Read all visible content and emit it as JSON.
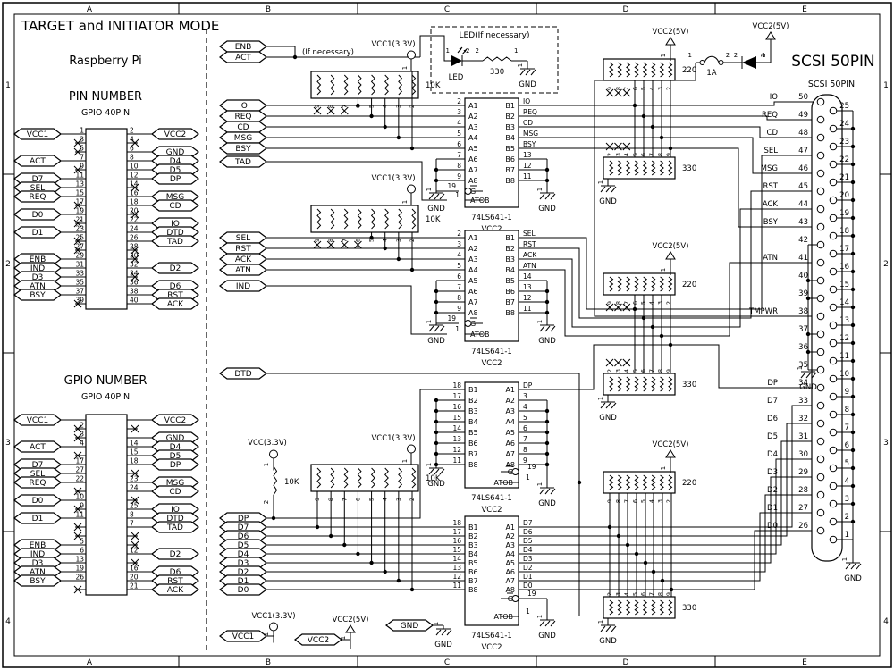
{
  "sheet": {
    "title": "TARGET and INITIATOR MODE",
    "cols": [
      "A",
      "B",
      "C",
      "D",
      "E"
    ],
    "rows": [
      "1",
      "2",
      "3",
      "4"
    ]
  },
  "left_panel": {
    "heading": "Raspberry Pi",
    "pin_table": {
      "title": "PIN NUMBER",
      "subtitle": "GPIO 40PIN",
      "left": [
        {
          "n": "1",
          "s": "VCC1"
        },
        {
          "n": "3",
          "x": 1
        },
        {
          "n": "5",
          "x": 1
        },
        {
          "n": "7",
          "s": "ACT"
        },
        {
          "n": "9",
          "x": 1
        },
        {
          "n": "11",
          "s": "D7"
        },
        {
          "n": "13",
          "s": "SEL"
        },
        {
          "n": "15",
          "s": "REQ"
        },
        {
          "n": "17",
          "x": 1
        },
        {
          "n": "19",
          "s": "D0"
        },
        {
          "n": "21",
          "x": 1
        },
        {
          "n": "23",
          "s": "D1"
        },
        {
          "n": "25",
          "x": 1
        },
        {
          "n": "27",
          "x": 1
        },
        {
          "n": "29",
          "s": "ENB"
        },
        {
          "n": "31",
          "s": "IND"
        },
        {
          "n": "33",
          "s": "D3"
        },
        {
          "n": "35",
          "s": "ATN"
        },
        {
          "n": "37",
          "s": "BSY"
        },
        {
          "n": "39",
          "x": 1
        }
      ],
      "right": [
        {
          "n": "2",
          "s": "VCC2"
        },
        {
          "n": "4",
          "x": 1
        },
        {
          "n": "6",
          "s": "GND"
        },
        {
          "n": "8",
          "s": "D4"
        },
        {
          "n": "10",
          "s": "D5"
        },
        {
          "n": "12",
          "s": "DP"
        },
        {
          "n": "14",
          "x": 1
        },
        {
          "n": "16",
          "s": "MSG"
        },
        {
          "n": "18",
          "s": "CD"
        },
        {
          "n": "20",
          "x": 1
        },
        {
          "n": "22",
          "s": "IO"
        },
        {
          "n": "24",
          "s": "DTD"
        },
        {
          "n": "26",
          "s": "TAD"
        },
        {
          "n": "28",
          "x": 1
        },
        {
          "n": "30",
          "x": 1
        },
        {
          "n": "32",
          "s": "D2"
        },
        {
          "n": "34",
          "x": 1
        },
        {
          "n": "36",
          "s": "D6"
        },
        {
          "n": "38",
          "s": "RST"
        },
        {
          "n": "40",
          "s": "ACK"
        }
      ]
    },
    "gpio_table": {
      "title": "GPIO NUMBER",
      "subtitle": "GPIO 40PIN",
      "left": [
        {
          "s": "VCC1"
        },
        {
          "n": "2",
          "x": 1
        },
        {
          "n": "3",
          "x": 1
        },
        {
          "n": "4",
          "s": "ACT"
        },
        {
          "x": 1
        },
        {
          "n": "17",
          "s": "D7"
        },
        {
          "n": "27",
          "s": "SEL"
        },
        {
          "n": "22",
          "s": "REQ"
        },
        {
          "x": 1
        },
        {
          "n": "10",
          "s": "D0"
        },
        {
          "n": "9",
          "x": 1
        },
        {
          "n": "11",
          "s": "D1"
        },
        {
          "x": 1
        },
        {
          "x": 1
        },
        {
          "n": "5",
          "s": "ENB"
        },
        {
          "n": "6",
          "s": "IND"
        },
        {
          "n": "13",
          "s": "D3"
        },
        {
          "n": "19",
          "s": "ATN"
        },
        {
          "n": "26",
          "s": "BSY"
        },
        {
          "x": 1
        }
      ],
      "right": [
        {
          "s": "VCC2"
        },
        {
          "x": 1
        },
        {
          "s": "GND"
        },
        {
          "n": "14",
          "s": "D4"
        },
        {
          "n": "15",
          "s": "D5"
        },
        {
          "n": "18",
          "s": "DP"
        },
        {
          "x": 1
        },
        {
          "n": "23",
          "s": "MSG"
        },
        {
          "n": "24",
          "s": "CD"
        },
        {
          "x": 1
        },
        {
          "n": "25",
          "s": "IO"
        },
        {
          "n": "8",
          "s": "DTD"
        },
        {
          "n": "7",
          "s": "TAD"
        },
        {
          "x": 1
        },
        {
          "x": 1
        },
        {
          "n": "12",
          "s": "D2"
        },
        {
          "x": 1
        },
        {
          "n": "16",
          "s": "D6"
        },
        {
          "n": "20",
          "s": "RST"
        },
        {
          "n": "21",
          "s": "ACK"
        }
      ]
    }
  },
  "led_module": {
    "title": "LED(If necessary)",
    "note": "(If necessary)",
    "led_label": "LED",
    "resistor": "330",
    "gnd": "GND",
    "pins": [
      "1",
      "2",
      "2",
      "1"
    ]
  },
  "chips": [
    {
      "part": "74LS641-1",
      "supply": "VCC2",
      "g": "19",
      "atob": "1",
      "gName": "G",
      "atobName": "ATOB",
      "left": [
        "2",
        "3",
        "4",
        "5",
        "6",
        "7",
        "8",
        "9"
      ],
      "leftNames": [
        "A1",
        "A2",
        "A3",
        "A4",
        "A5",
        "A6",
        "A7",
        "A8"
      ],
      "right": [
        "IO",
        "REQ",
        "CD",
        "MSG",
        "BSY",
        "13",
        "12",
        "11"
      ],
      "rightNames": [
        "B1",
        "B2",
        "B3",
        "B4",
        "B5",
        "B6",
        "B7",
        "B8"
      ],
      "gndLabel": "GND"
    },
    {
      "part": "74LS641-1",
      "supply": "VCC2",
      "g": "19",
      "atob": "1",
      "gName": "G",
      "atobName": "ATOB",
      "left": [
        "2",
        "3",
        "4",
        "5",
        "6",
        "7",
        "8",
        "9"
      ],
      "leftNames": [
        "A1",
        "A2",
        "A3",
        "A4",
        "A5",
        "A6",
        "A7",
        "A8"
      ],
      "right": [
        "SEL",
        "RST",
        "ACK",
        "ATN",
        "14",
        "13",
        "12",
        "11"
      ],
      "rightNames": [
        "B1",
        "B2",
        "B3",
        "B4",
        "B5",
        "B6",
        "B7",
        "B8"
      ],
      "gndLabel": "GND"
    },
    {
      "part": "74LS641-1",
      "supply": "VCC2",
      "g": "19",
      "atob": "1",
      "gName": "G",
      "atobName": "ATOB",
      "left": [
        "18",
        "17",
        "16",
        "15",
        "14",
        "13",
        "12",
        "11"
      ],
      "leftNames": [
        "B1",
        "B2",
        "B3",
        "B4",
        "B5",
        "B6",
        "B7",
        "B8"
      ],
      "right": [
        "DP",
        "3",
        "4",
        "5",
        "6",
        "7",
        "8",
        "9"
      ],
      "rightNames": [
        "A1",
        "A2",
        "A3",
        "A4",
        "A5",
        "A6",
        "A7",
        "A8"
      ],
      "gndLabel": "GND"
    },
    {
      "part": "74LS641-1",
      "supply": "VCC2",
      "g": "19",
      "atob": "1",
      "gName": "G",
      "atobName": "ATOB",
      "left": [
        "18",
        "17",
        "16",
        "15",
        "14",
        "13",
        "12",
        "11"
      ],
      "leftNames": [
        "B1",
        "B2",
        "B3",
        "B4",
        "B5",
        "B6",
        "B7",
        "B8"
      ],
      "right": [
        "D7",
        "D6",
        "D5",
        "D4",
        "D3",
        "D2",
        "D1",
        "D0"
      ],
      "rightNames": [
        "A1",
        "A2",
        "A3",
        "A4",
        "A5",
        "A6",
        "A7",
        "A8"
      ],
      "gndLabel": "GND"
    }
  ],
  "pullups": [
    {
      "value": "10K",
      "power": "VCC1(3.3V)",
      "pin1": "1",
      "pins": [
        "9",
        "8",
        "7",
        "6",
        "5",
        "4",
        "3",
        "2"
      ]
    },
    {
      "value": "10K",
      "power": "VCC1(3.3V)",
      "pin1": "1",
      "pins": [
        "9",
        "8",
        "7",
        "6",
        "5",
        "4",
        "3",
        "2"
      ]
    },
    {
      "value": "10K",
      "power": "VCC1(3.3V)",
      "pin1": "1",
      "pins": [
        "9",
        "8",
        "7",
        "6",
        "5",
        "4",
        "3",
        "2"
      ]
    },
    {
      "value": "10K",
      "power": "VCC(3.3V)",
      "pin1": "1",
      "pin2": "2"
    }
  ],
  "terminators": [
    {
      "up": "220",
      "down": "330",
      "power": "VCC2(5V)",
      "gnd": "GND",
      "pin1": "1",
      "upPins": [
        "9",
        "8",
        "7",
        "6",
        "5",
        "4",
        "3",
        "2"
      ],
      "downPins": [
        "2",
        "3",
        "4",
        "5",
        "6",
        "7",
        "8",
        "9"
      ]
    },
    {
      "up": "220",
      "down": "330",
      "power": "VCC2(5V)",
      "gnd": "GND",
      "pin1": "1",
      "upPins": [
        "9",
        "8",
        "7",
        "6",
        "5",
        "4",
        "3",
        "2"
      ],
      "downPins": [
        "2",
        "3",
        "4",
        "5",
        "6",
        "7",
        "8",
        "9"
      ]
    },
    {
      "up": "220",
      "down": "330",
      "power": "VCC2(5V)",
      "gnd": "GND",
      "pin1": "1",
      "upPins": [
        "9",
        "8",
        "7",
        "6",
        "5",
        "4",
        "3",
        "2"
      ],
      "downPins": [
        "2",
        "3",
        "4",
        "5",
        "6",
        "7",
        "8",
        "9"
      ]
    }
  ],
  "termpower": {
    "fuse": "1A",
    "power": "VCC2(5V)",
    "pins": [
      "1",
      "2",
      "2",
      "1"
    ]
  },
  "scsi": {
    "title": "SCSI 50PIN",
    "header": "SCSI 50PIN",
    "gnd": "GND",
    "left": [
      {
        "n": "50",
        "s": "IO"
      },
      {
        "n": "49",
        "s": "REQ"
      },
      {
        "n": "48",
        "s": "CD"
      },
      {
        "n": "47",
        "s": "SEL"
      },
      {
        "n": "46",
        "s": "MSG"
      },
      {
        "n": "45",
        "s": "RST"
      },
      {
        "n": "44",
        "s": "ACK"
      },
      {
        "n": "43",
        "s": "BSY"
      },
      {
        "n": "42"
      },
      {
        "n": "41",
        "s": "ATN"
      },
      {
        "n": "40"
      },
      {
        "n": "39"
      },
      {
        "n": "38",
        "s": "TMPWR"
      },
      {
        "n": "37"
      },
      {
        "n": "36"
      },
      {
        "n": "35"
      },
      {
        "n": "34",
        "s": "DP"
      },
      {
        "n": "33",
        "s": "D7"
      },
      {
        "n": "32",
        "s": "D6"
      },
      {
        "n": "31",
        "s": "D5"
      },
      {
        "n": "30",
        "s": "D4"
      },
      {
        "n": "29",
        "s": "D3"
      },
      {
        "n": "28",
        "s": "D2"
      },
      {
        "n": "27",
        "s": "D1"
      },
      {
        "n": "26",
        "s": "D0"
      }
    ],
    "right": [
      "25",
      "24",
      "23",
      "22",
      "21",
      "20",
      "19",
      "18",
      "17",
      "16",
      "15",
      "14",
      "13",
      "12",
      "11",
      "10",
      "9",
      "8",
      "7",
      "6",
      "5",
      "4",
      "3",
      "2",
      "1"
    ]
  },
  "signals": {
    "flags": [
      "ENB",
      "ACT",
      "IO",
      "REQ",
      "CD",
      "MSG",
      "BSY",
      "TAD",
      "SEL",
      "RST",
      "ACK",
      "ATN",
      "IND",
      "DTD",
      "DP",
      "D7",
      "D6",
      "D5",
      "D4",
      "D3",
      "D2",
      "D1",
      "D0"
    ],
    "power_flags": [
      {
        "flag": "VCC1",
        "label": "VCC1(3.3V)"
      },
      {
        "flag": "VCC2",
        "label": "VCC2(5V)"
      },
      {
        "flag": "GND",
        "label": "GND"
      }
    ]
  }
}
